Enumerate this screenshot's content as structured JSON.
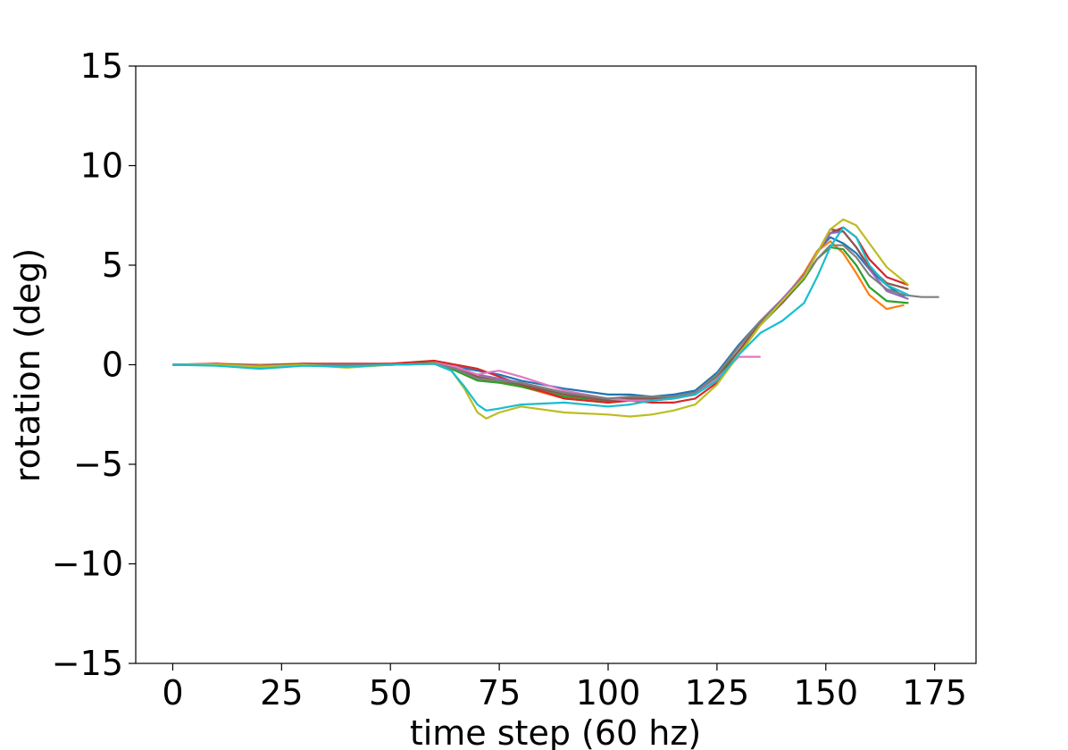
{
  "chart_data": {
    "type": "line",
    "title": "",
    "xlabel": "time step (60 hz)",
    "ylabel": "rotation (deg)",
    "xlim": [
      -8.5,
      184.5
    ],
    "ylim": [
      -15,
      15
    ],
    "x_ticks": [
      0,
      25,
      50,
      75,
      100,
      125,
      150,
      175
    ],
    "y_ticks": [
      -15,
      -10,
      -5,
      0,
      5,
      10,
      15
    ],
    "x_tick_labels": [
      "0",
      "25",
      "50",
      "75",
      "100",
      "125",
      "150",
      "175"
    ],
    "y_tick_labels": [
      "−15",
      "−10",
      "−5",
      "0",
      "5",
      "10",
      "15"
    ],
    "grid": false,
    "legend": "none",
    "series": [
      {
        "color": "#1f77b4",
        "x": [
          0,
          10,
          20,
          30,
          40,
          50,
          60,
          65,
          70,
          75,
          80,
          90,
          100,
          105,
          110,
          115,
          120,
          125,
          130,
          135,
          140,
          145,
          148,
          151,
          154,
          157,
          160,
          164,
          168
        ],
        "y": [
          0,
          0.02,
          -0.1,
          0,
          -0.05,
          0.02,
          0.08,
          -0.1,
          -0.3,
          -0.5,
          -0.8,
          -1.2,
          -1.5,
          -1.5,
          -1.6,
          -1.5,
          -1.3,
          -0.4,
          1.0,
          2.2,
          3.2,
          4.6,
          5.7,
          6.4,
          6.1,
          5.6,
          4.8,
          4.0,
          3.4
        ]
      },
      {
        "color": "#ff7f0e",
        "x": [
          0,
          10,
          20,
          30,
          40,
          50,
          60,
          65,
          70,
          75,
          80,
          90,
          100,
          105,
          110,
          115,
          120,
          125,
          130,
          135,
          140,
          145,
          148,
          151,
          154,
          157,
          160,
          164,
          168
        ],
        "y": [
          0,
          0.05,
          0,
          0.05,
          0,
          0.05,
          0.1,
          -0.2,
          -0.7,
          -0.9,
          -1.1,
          -1.7,
          -1.9,
          -1.8,
          -1.8,
          -1.7,
          -1.5,
          -0.7,
          0.7,
          2.1,
          3.2,
          4.6,
          5.7,
          6.2,
          5.6,
          4.6,
          3.5,
          2.8,
          3.0
        ]
      },
      {
        "color": "#2ca02c",
        "x": [
          0,
          10,
          20,
          30,
          40,
          50,
          60,
          65,
          70,
          75,
          80,
          90,
          100,
          105,
          110,
          115,
          120,
          125,
          130,
          135,
          140,
          145,
          148,
          151,
          154,
          157,
          160,
          164,
          169
        ],
        "y": [
          0,
          0,
          -0.05,
          0.05,
          0,
          0,
          0.08,
          -0.3,
          -0.8,
          -0.9,
          -1.1,
          -1.6,
          -1.8,
          -1.7,
          -1.7,
          -1.6,
          -1.4,
          -0.6,
          0.7,
          2.0,
          3.1,
          4.3,
          5.3,
          5.9,
          5.8,
          5.0,
          3.9,
          3.2,
          3.1
        ]
      },
      {
        "color": "#d62728",
        "x": [
          0,
          10,
          20,
          30,
          40,
          50,
          60,
          65,
          70,
          75,
          80,
          90,
          100,
          105,
          110,
          115,
          120,
          125,
          130,
          135,
          140,
          145,
          148,
          151,
          154,
          157,
          160,
          164,
          169
        ],
        "y": [
          0,
          0.05,
          -0.05,
          0.05,
          0.05,
          0.05,
          0.2,
          0,
          -0.2,
          -0.6,
          -1.0,
          -1.7,
          -1.9,
          -1.8,
          -1.9,
          -1.9,
          -1.7,
          -0.9,
          0.5,
          2.0,
          3.2,
          4.5,
          5.6,
          6.6,
          6.9,
          6.4,
          5.3,
          4.4,
          4.0
        ]
      },
      {
        "color": "#9467bd",
        "x": [
          0,
          10,
          20,
          30,
          40,
          50,
          60,
          65,
          70,
          75,
          80,
          90,
          100,
          105,
          110,
          115,
          120,
          125,
          130,
          135,
          140,
          145,
          148,
          151,
          154,
          157,
          160,
          164,
          169
        ],
        "y": [
          0,
          0,
          -0.15,
          0,
          -0.05,
          0,
          0.05,
          -0.1,
          -0.5,
          -0.7,
          -0.9,
          -1.4,
          -1.7,
          -1.7,
          -1.7,
          -1.6,
          -1.4,
          -0.5,
          0.9,
          2.2,
          3.3,
          4.5,
          5.6,
          6.6,
          6.7,
          5.9,
          4.8,
          3.7,
          3.3
        ]
      },
      {
        "color": "#8c564b",
        "x": [
          0,
          10,
          20,
          30,
          40,
          50,
          60,
          65,
          70,
          75,
          80,
          90,
          100,
          105,
          110,
          115,
          120,
          125,
          130,
          135,
          140,
          145,
          148,
          151,
          154,
          157,
          160,
          164,
          169
        ],
        "y": [
          0,
          0,
          -0.1,
          0,
          0,
          0,
          0.05,
          -0.2,
          -0.6,
          -0.8,
          -1.0,
          -1.5,
          -1.8,
          -1.7,
          -1.7,
          -1.7,
          -1.5,
          -0.7,
          0.7,
          2.1,
          3.1,
          4.4,
          5.6,
          6.8,
          6.7,
          5.9,
          4.9,
          4.1,
          3.8
        ]
      },
      {
        "color": "#e377c2",
        "x": [
          0,
          10,
          20,
          30,
          40,
          50,
          60,
          65,
          70,
          72,
          75,
          80,
          90,
          100,
          105,
          110,
          115,
          120,
          125,
          130,
          135
        ],
        "y": [
          0,
          0,
          -0.15,
          0,
          -0.1,
          0,
          0.05,
          -0.1,
          -0.5,
          -0.4,
          -0.3,
          -0.6,
          -1.3,
          -1.7,
          -1.8,
          -1.8,
          -1.7,
          -1.5,
          -0.7,
          0.4,
          0.4
        ]
      },
      {
        "color": "#7f7f7f",
        "x": [
          0,
          10,
          20,
          30,
          40,
          50,
          60,
          65,
          70,
          75,
          80,
          90,
          100,
          105,
          110,
          115,
          120,
          125,
          130,
          135,
          140,
          145,
          148,
          151,
          154,
          157,
          160,
          164,
          168,
          172,
          176
        ],
        "y": [
          0,
          0,
          -0.05,
          0,
          0,
          0,
          0.05,
          -0.2,
          -0.7,
          -0.8,
          -0.9,
          -1.4,
          -1.7,
          -1.6,
          -1.6,
          -1.6,
          -1.4,
          -0.5,
          0.9,
          2.2,
          3.2,
          4.4,
          5.3,
          6.0,
          6.0,
          5.4,
          4.5,
          3.8,
          3.5,
          3.4,
          3.4
        ]
      },
      {
        "color": "#bcbd22",
        "x": [
          0,
          10,
          20,
          30,
          40,
          50,
          60,
          64,
          67,
          70,
          72,
          75,
          80,
          90,
          100,
          105,
          110,
          115,
          120,
          125,
          130,
          135,
          140,
          145,
          148,
          151,
          154,
          157,
          160,
          164,
          169
        ],
        "y": [
          0,
          0.02,
          -0.1,
          0,
          -0.15,
          0,
          0.05,
          -0.3,
          -1.2,
          -2.4,
          -2.7,
          -2.4,
          -2.1,
          -2.4,
          -2.5,
          -2.6,
          -2.5,
          -2.3,
          -2.0,
          -1.0,
          0.5,
          2.0,
          3.2,
          4.4,
          5.6,
          6.8,
          7.3,
          7.0,
          6.1,
          4.9,
          4.0
        ]
      },
      {
        "color": "#17becf",
        "x": [
          0,
          10,
          20,
          30,
          40,
          50,
          60,
          64,
          67,
          70,
          72,
          75,
          80,
          90,
          100,
          105,
          110,
          115,
          120,
          125,
          130,
          135,
          140,
          145,
          148,
          151,
          154,
          157,
          160,
          164,
          169
        ],
        "y": [
          0,
          -0.05,
          -0.2,
          -0.05,
          -0.1,
          0,
          0.05,
          -0.3,
          -1.1,
          -2.0,
          -2.3,
          -2.2,
          -2.0,
          -1.9,
          -2.1,
          -2.0,
          -1.8,
          -1.7,
          -1.5,
          -0.8,
          0.5,
          1.6,
          2.2,
          3.1,
          4.4,
          5.9,
          6.9,
          6.4,
          5.0,
          4.0,
          3.5
        ]
      }
    ]
  }
}
